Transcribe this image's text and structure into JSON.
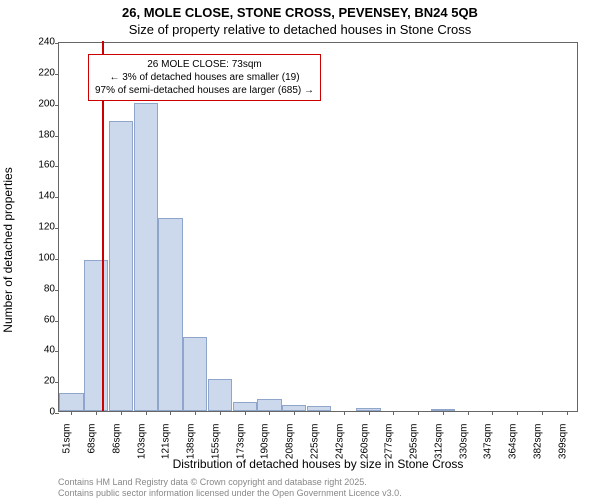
{
  "title_line1": "26, MOLE CLOSE, STONE CROSS, PEVENSEY, BN24 5QB",
  "title_line2": "Size of property relative to detached houses in Stone Cross",
  "ylabel": "Number of detached properties",
  "xlabel": "Distribution of detached houses by size in Stone Cross",
  "footer_line1": "Contains HM Land Registry data © Crown copyright and database right 2025.",
  "footer_line2": "Contains public sector information licensed under the Open Government Licence v3.0.",
  "chart": {
    "type": "histogram",
    "background_color": "#ffffff",
    "border_color": "#666666",
    "bar_fill": "#ccd9ed",
    "bar_stroke": "#8fa5c9",
    "marker_color": "#cc0000",
    "annotation_border": "#cc0000",
    "title_fontsize": 13,
    "label_fontsize": 12,
    "tick_fontsize": 10,
    "annotation_fontsize": 10,
    "footer_color": "#888888",
    "footer_fontsize": 9,
    "ylim": [
      0,
      240
    ],
    "ytick_step": 20,
    "xticks": [
      "51sqm",
      "68sqm",
      "86sqm",
      "103sqm",
      "121sqm",
      "138sqm",
      "155sqm",
      "173sqm",
      "190sqm",
      "208sqm",
      "225sqm",
      "242sqm",
      "260sqm",
      "277sqm",
      "295sqm",
      "312sqm",
      "330sqm",
      "347sqm",
      "364sqm",
      "382sqm",
      "399sqm"
    ],
    "bars": [
      12,
      98,
      188,
      200,
      125,
      48,
      21,
      6,
      8,
      4,
      3,
      0,
      2,
      0,
      0,
      1,
      0,
      0,
      0,
      0,
      0
    ],
    "marker_position": 1.25,
    "annotation": {
      "line1": "26 MOLE CLOSE: 73sqm",
      "line2": "← 3% of detached houses are smaller (19)",
      "line3": "97% of semi-detached houses are larger (685) →"
    }
  }
}
